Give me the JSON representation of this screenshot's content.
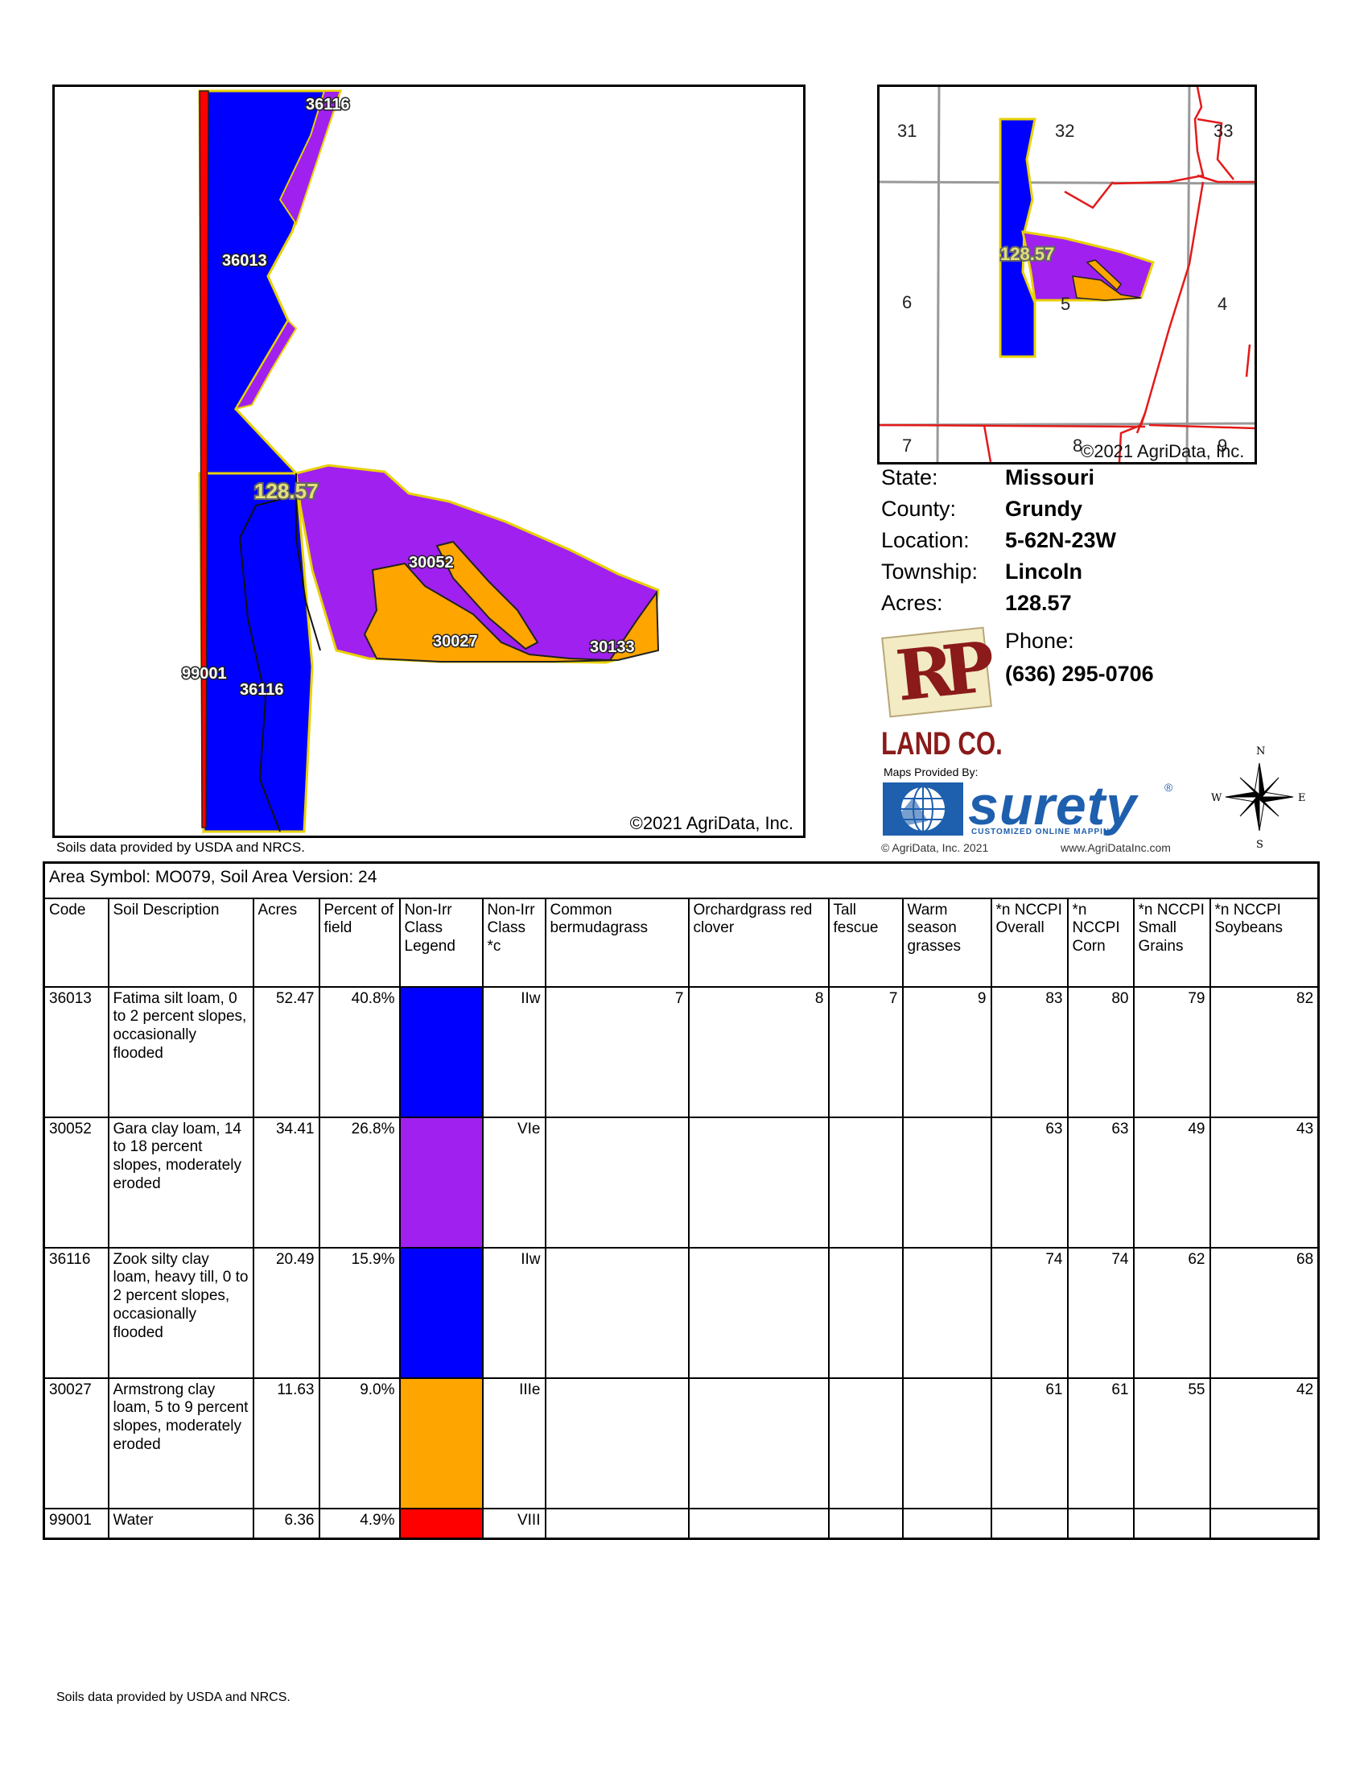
{
  "main_map": {
    "copyright": "©2021 AgriData, Inc.",
    "acreage_label": "128.57",
    "soil_labels": [
      "36116",
      "36013",
      "30052",
      "30027",
      "30133",
      "99001",
      "36116"
    ]
  },
  "source_note": "Soils data provided by USDA and NRCS.",
  "inset_map": {
    "section_numbers": [
      "31",
      "32",
      "33",
      "6",
      "5",
      "4",
      "7",
      "8",
      "9"
    ],
    "acreage_label": "128.57",
    "copyright": "©2021 AgriData, Inc."
  },
  "info": {
    "state_label": "State:",
    "state": "Missouri",
    "county_label": "County:",
    "county": "Grundy",
    "location_label": "Location:",
    "location": "5-62N-23W",
    "township_label": "Township:",
    "township": "Lincoln",
    "acres_label": "Acres:",
    "acres": "128.57",
    "phone_label": "Phone:",
    "phone": "(636) 295-0706"
  },
  "logos": {
    "rp_letters": "RP",
    "land_co": "LAND CO.",
    "maps_provided_by": "Maps Provided By:",
    "surety": "surety",
    "surety_reg": "®",
    "surety_tagline": "CUSTOMIZED ONLINE MAPPING",
    "agridata_copy": "© AgriData, Inc. 2021",
    "agridata_url": "www.AgriDataInc.com"
  },
  "compass": {
    "n": "N",
    "s": "S",
    "e": "E",
    "w": "W"
  },
  "table": {
    "area_symbol": "Area Symbol: MO079, Soil Area Version: 24",
    "headers": [
      "Code",
      "Soil Description",
      "Acres",
      "Percent of field",
      "Non-Irr Class Legend",
      "Non-Irr Class *c",
      "Common bermudagrass",
      "Orchardgrass red clover",
      "Tall fescue",
      "Warm season grasses",
      "*n NCCPI Overall",
      "*n NCCPI Corn",
      "*n NCCPI Small Grains",
      "*n NCCPI Soybeans"
    ],
    "rows": [
      {
        "code": "36013",
        "desc": "Fatima silt loam, 0 to 2 percent slopes, occasionally flooded",
        "acres": "52.47",
        "pct": "40.8%",
        "color": "#0000ff",
        "cls": "IIw",
        "bermuda": "7",
        "orchard": "8",
        "fescue": "7",
        "warm": "9",
        "overall": "83",
        "corn": "80",
        "grains": "79",
        "soy": "82"
      },
      {
        "code": "30052",
        "desc": "Gara clay loam, 14 to 18 percent slopes, moderately eroded",
        "acres": "34.41",
        "pct": "26.8%",
        "color": "#a020f0",
        "cls": "VIe",
        "bermuda": "",
        "orchard": "",
        "fescue": "",
        "warm": "",
        "overall": "63",
        "corn": "63",
        "grains": "49",
        "soy": "43"
      },
      {
        "code": "36116",
        "desc": "Zook silty clay loam, heavy till, 0 to 2 percent slopes, occasionally flooded",
        "acres": "20.49",
        "pct": "15.9%",
        "color": "#0000ff",
        "cls": "IIw",
        "bermuda": "",
        "orchard": "",
        "fescue": "",
        "warm": "",
        "overall": "74",
        "corn": "74",
        "grains": "62",
        "soy": "68"
      },
      {
        "code": "30027",
        "desc": "Armstrong clay loam, 5 to 9 percent slopes, moderately eroded",
        "acres": "11.63",
        "pct": "9.0%",
        "color": "#ffa500",
        "cls": "IIIe",
        "bermuda": "",
        "orchard": "",
        "fescue": "",
        "warm": "",
        "overall": "61",
        "corn": "61",
        "grains": "55",
        "soy": "42"
      },
      {
        "code": "99001",
        "desc": "Water",
        "acres": "6.36",
        "pct": "4.9%",
        "color": "#ff0000",
        "cls": "VIII",
        "bermuda": "",
        "orchard": "",
        "fescue": "",
        "warm": "",
        "overall": "",
        "corn": "",
        "grains": "",
        "soy": ""
      }
    ]
  },
  "footer_note": "Soils data provided by USDA and NRCS.",
  "colors": {
    "blue": "#0000ff",
    "purple": "#a020f0",
    "orange": "#ffa500",
    "red": "#ff0000",
    "boundary": "#e8d200"
  }
}
